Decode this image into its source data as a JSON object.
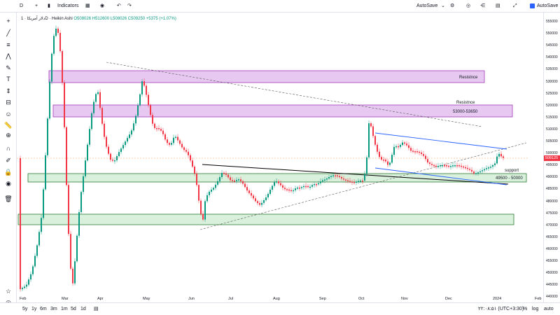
{
  "toolbar": {
    "symbol_initial": "D",
    "indicators_label": "Indicators",
    "autosave_center": "AutoSave",
    "autosave_right": "AutoSave"
  },
  "legend": {
    "symbol": "دلار آمریکا · 1D · Heikin Ashi",
    "ohlc": "O508026 H512600 L508026 C509250 +5375 (+1.07%)"
  },
  "price_axis": {
    "ticks": [
      "555000",
      "550000",
      "545000",
      "540000",
      "535000",
      "530000",
      "525000",
      "520000",
      "515000",
      "510000",
      "505000",
      "500000",
      "495000",
      "490000",
      "485000",
      "480000",
      "475000",
      "470000",
      "465000",
      "460000",
      "455000",
      "450000",
      "445000",
      "440000"
    ],
    "current_price": "509125"
  },
  "time_axis": {
    "ticks": [
      "Feb",
      "Mar",
      "Apr",
      "May",
      "Jun",
      "Jul",
      "Aug",
      "Sep",
      "Oct",
      "Nov",
      "Dec",
      "2024",
      "Feb"
    ]
  },
  "annotations": {
    "resistance_1": "Resistnce",
    "resistance_2": "Resistnce",
    "resistance_2_range": "53000-53650",
    "support_label": "support",
    "support_range": "49500 - 50000"
  },
  "bottom": {
    "ranges": [
      "5y",
      "1y",
      "6m",
      "3m",
      "1m",
      "5d",
      "1d"
    ],
    "clock": "۲۲:۰۸:۵۱ (UTC+3:30)",
    "pct": "%",
    "log": "log",
    "auto": "auto"
  },
  "colors": {
    "up": "#089981",
    "down": "#f23645",
    "resistance_fill": "#e6c8f0",
    "resistance_border": "#a33bb8",
    "support_fill": "#d9f0dc",
    "support_border": "#2e7d32",
    "channel": "#2962ff"
  }
}
